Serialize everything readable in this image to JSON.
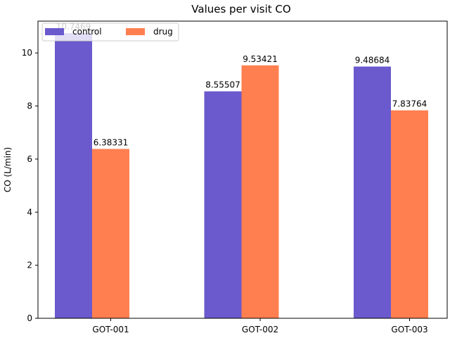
{
  "chart_data": {
    "type": "bar",
    "title": "Values per visit CO",
    "xlabel": "",
    "ylabel": "CO (L/min)",
    "categories": [
      "GOT-001",
      "GOT-002",
      "GOT-003"
    ],
    "series": [
      {
        "name": "control",
        "color": "#6a5acd",
        "values": [
          10.7469,
          8.55507,
          9.48684
        ],
        "labels": [
          "10.7469",
          "8.55507",
          "9.48684"
        ]
      },
      {
        "name": "drug",
        "color": "#ff7f50",
        "values": [
          6.38331,
          9.53421,
          7.83764
        ],
        "labels": [
          "6.38331",
          "9.53421",
          "7.83764"
        ]
      }
    ],
    "ylim": [
      0,
      11.2
    ],
    "yticks": [
      0,
      2,
      4,
      6,
      8,
      10
    ],
    "grid": false,
    "legend": {
      "placement": "top-left",
      "columns": 2
    }
  }
}
